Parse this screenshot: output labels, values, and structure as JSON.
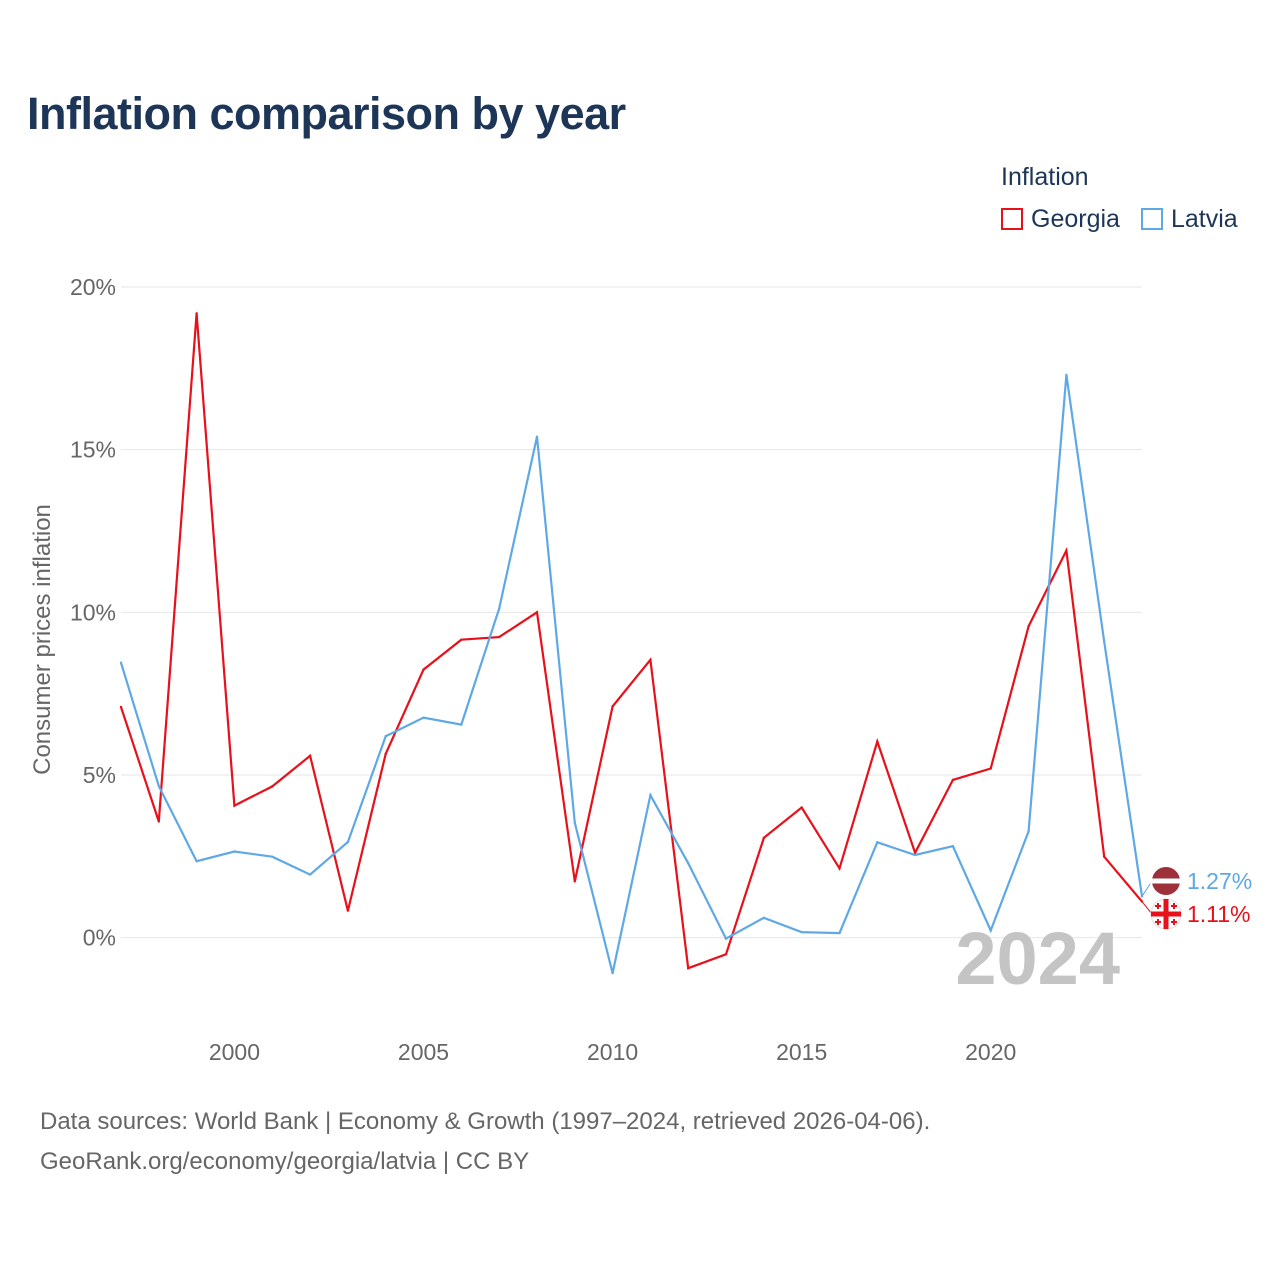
{
  "title": "Inflation comparison by year",
  "legend": {
    "title": "Inflation",
    "items": [
      {
        "label": "Georgia",
        "color": "#e8101a"
      },
      {
        "label": "Latvia",
        "color": "#5fa8e6"
      }
    ]
  },
  "footer": {
    "line1": "Data sources: World Bank | Economy & Growth (1997–2024, retrieved 2026-04-06).",
    "line2": "GeoRank.org/economy/georgia/latvia | CC BY"
  },
  "chart_data": {
    "type": "line",
    "title": "Inflation comparison by year",
    "xlabel": "",
    "ylabel": "Consumer prices inflation",
    "x": [
      1997,
      1998,
      1999,
      2000,
      2001,
      2002,
      2003,
      2004,
      2005,
      2006,
      2007,
      2008,
      2009,
      2010,
      2011,
      2012,
      2013,
      2014,
      2015,
      2016,
      2017,
      2018,
      2019,
      2020,
      2021,
      2022,
      2023,
      2024
    ],
    "xlim": [
      1997,
      2024
    ],
    "ylim": [
      -2.5,
      20
    ],
    "x_ticks": [
      2000,
      2005,
      2010,
      2015,
      2020
    ],
    "x_tick_labels": [
      "2000",
      "2005",
      "2010",
      "2015",
      "2020"
    ],
    "y_ticks": [
      0,
      5,
      10,
      15,
      20
    ],
    "y_tick_labels": [
      "0%",
      "5%",
      "10%",
      "15%",
      "20%"
    ],
    "grid": true,
    "watermark_year": "2024",
    "series": [
      {
        "name": "Georgia",
        "color": "#e8101a",
        "values": [
          7.09,
          3.57,
          19.19,
          4.06,
          4.65,
          5.59,
          0.83,
          5.65,
          8.24,
          9.16,
          9.24,
          10.0,
          1.73,
          7.11,
          8.54,
          -0.94,
          -0.51,
          3.07,
          4.0,
          2.13,
          6.03,
          2.61,
          4.85,
          5.2,
          9.57,
          11.9,
          2.49,
          1.11
        ],
        "end_label": "1.11%"
      },
      {
        "name": "Latvia",
        "color": "#5fa8e6",
        "values": [
          8.45,
          4.66,
          2.35,
          2.65,
          2.49,
          1.94,
          2.94,
          6.19,
          6.76,
          6.55,
          10.11,
          15.4,
          3.53,
          -1.09,
          4.38,
          2.29,
          -0.03,
          0.61,
          0.17,
          0.14,
          2.93,
          2.54,
          2.81,
          0.22,
          3.27,
          17.3,
          9.1,
          1.27
        ],
        "end_label": "1.27%"
      }
    ]
  }
}
